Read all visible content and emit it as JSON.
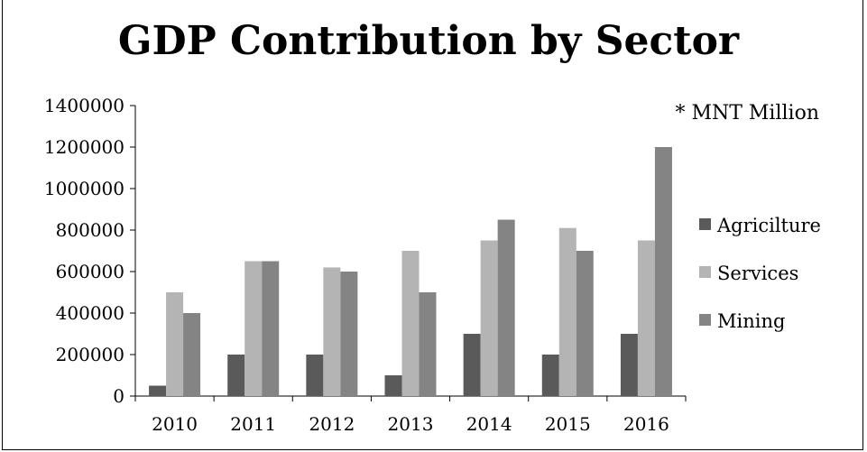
{
  "chart_data": {
    "type": "bar",
    "title": "GDP Contribution by Sector",
    "annotation": "* MNT Million",
    "categories": [
      "2010",
      "2011",
      "2012",
      "2013",
      "2014",
      "2015",
      "2016"
    ],
    "series": [
      {
        "name": "Agricilture",
        "color": "#5a5a5a",
        "values": [
          50000,
          200000,
          200000,
          100000,
          300000,
          200000,
          300000
        ]
      },
      {
        "name": "Services",
        "color": "#b4b4b4",
        "values": [
          500000,
          650000,
          620000,
          700000,
          750000,
          810000,
          750000
        ]
      },
      {
        "name": "Mining",
        "color": "#848484",
        "values": [
          400000,
          650000,
          600000,
          500000,
          850000,
          700000,
          1200000
        ]
      }
    ],
    "ylim": [
      0,
      1400000
    ],
    "yticks": [
      "0",
      "200000",
      "400000",
      "600000",
      "800000",
      "1000000",
      "1200000",
      "1400000"
    ],
    "xlabel": "",
    "ylabel": "",
    "legend": "right",
    "grid": false
  }
}
